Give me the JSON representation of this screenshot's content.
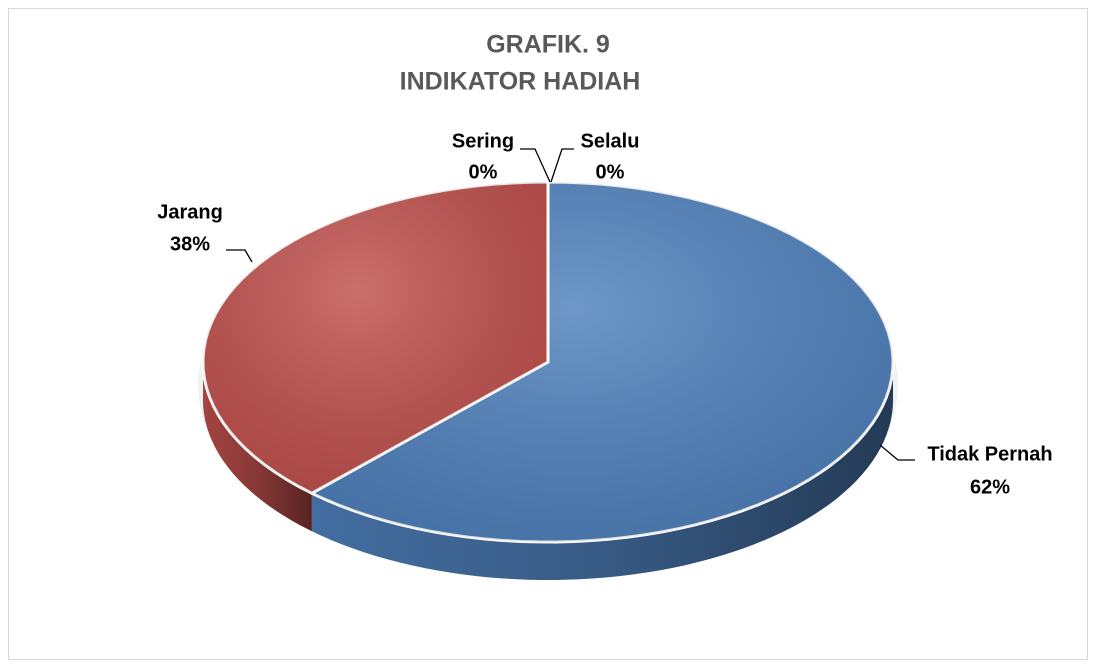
{
  "chart_data": {
    "type": "pie",
    "title": "GRAFIK. 9",
    "subtitle": "INDIKATOR HADIAH",
    "categories": [
      "Tidak Pernah",
      "Jarang",
      "Sering",
      "Selalu"
    ],
    "values": [
      62,
      38,
      0,
      0
    ],
    "value_labels": [
      "62%",
      "38%",
      "0%",
      "0%"
    ],
    "colors": [
      "#4f81bd",
      "#c0504d",
      "#9bbb59",
      "#8064a2"
    ]
  }
}
